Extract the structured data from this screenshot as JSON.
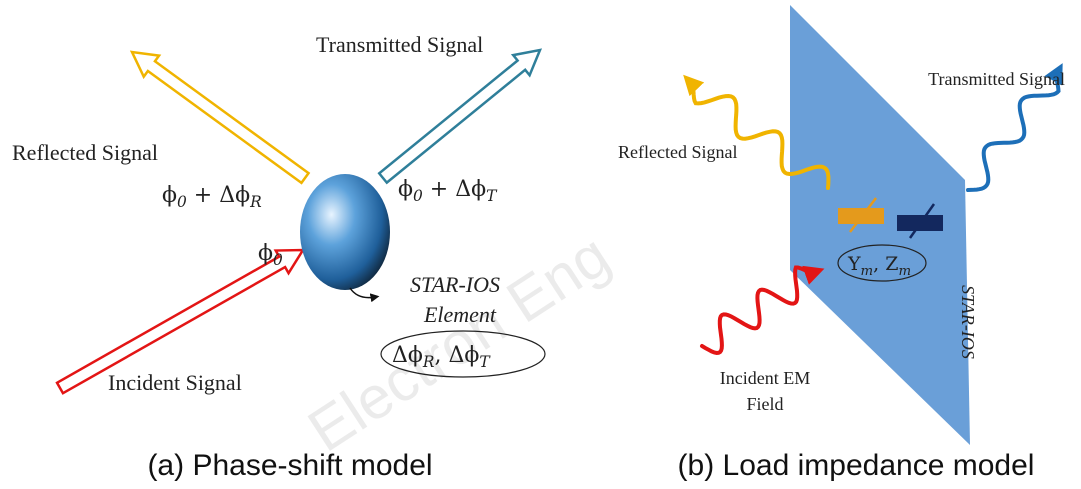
{
  "panel_a": {
    "transmitted": "Transmitted Signal",
    "reflected": "Reflected Signal",
    "incident": "Incident Signal",
    "phase_reflected": [
      [
        "ϕ",
        "0"
      ],
      [
        " + Δϕ",
        "R"
      ]
    ],
    "phase_transmitted": [
      [
        "ϕ",
        "0"
      ],
      [
        " + Δϕ",
        "T"
      ]
    ],
    "phase_incident": [
      [
        "ϕ",
        "0"
      ]
    ],
    "element_line1": "STAR-IOS",
    "element_line2": "Element",
    "element_params": [
      [
        "Δϕ",
        "R"
      ],
      [
        ", Δϕ",
        "T"
      ]
    ],
    "caption": "(a) Phase-shift model"
  },
  "panel_b": {
    "transmitted": "Transmitted Signal",
    "reflected": "Reflected Signal",
    "impedance": [
      [
        "Y",
        "m"
      ],
      [
        ", Z",
        "m"
      ]
    ],
    "surface": "STAR-IOS",
    "incident_line1": "Incident EM",
    "incident_line2": "Field",
    "caption": "(b) Load impedance model"
  },
  "watermark": "Electron Eng"
}
